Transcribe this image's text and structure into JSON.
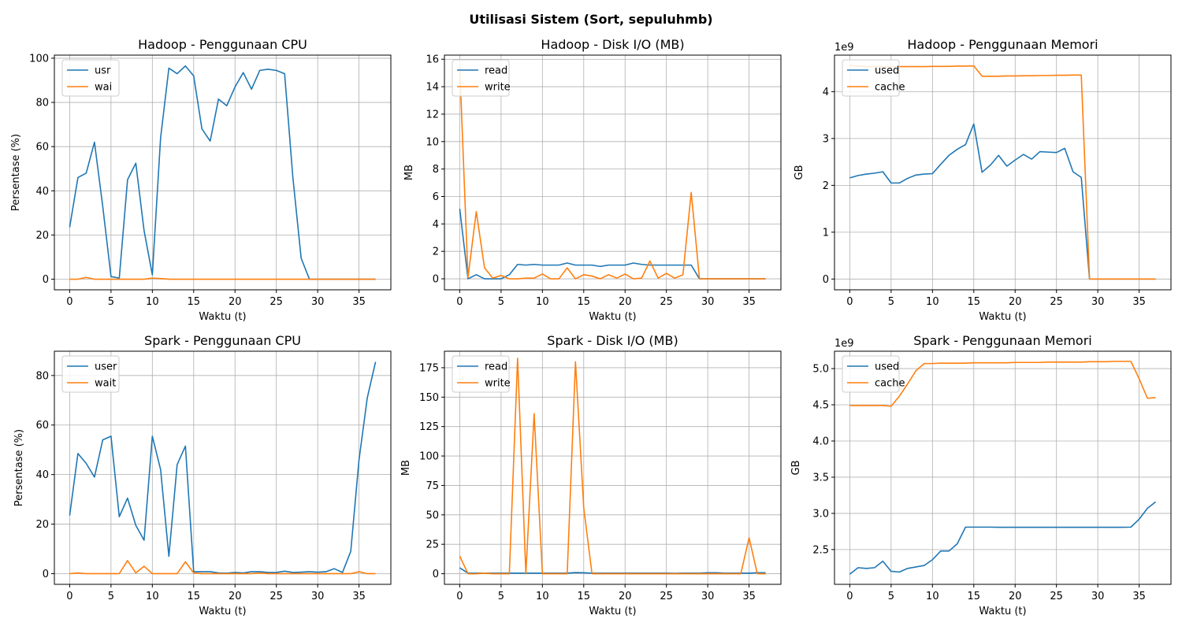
{
  "figure_title": "Utilisasi Sistem (Sort, sepuluhmb)",
  "colors": {
    "series1": "#1f77b4",
    "series2": "#ff7f0e",
    "grid": "#b0b0b0"
  },
  "chart_data": [
    {
      "type": "line",
      "title": "Hadoop - Penggunaan CPU",
      "xlabel": "Waktu (t)",
      "ylabel": "Persentase (%)",
      "xlim": [
        -1.85,
        38.85
      ],
      "ylim": [
        -4.8,
        101.4
      ],
      "xticks": [
        0,
        5,
        10,
        15,
        20,
        25,
        30,
        35
      ],
      "yticks": [
        0,
        20,
        40,
        60,
        80,
        100
      ],
      "yticklabels": [
        "0",
        "20",
        "40",
        "60",
        "80",
        "100"
      ],
      "grid": true,
      "legend_position": "upper-left",
      "x": [
        0,
        1,
        2,
        3,
        4,
        5,
        6,
        7,
        8,
        9,
        10,
        11,
        12,
        13,
        14,
        15,
        16,
        17,
        18,
        19,
        20,
        21,
        22,
        23,
        24,
        25,
        26,
        27,
        28,
        29,
        30,
        31,
        32,
        33,
        34,
        35,
        36,
        37
      ],
      "series": [
        {
          "name": "usr",
          "values": [
            23.5,
            46,
            48,
            62,
            33,
            1.2,
            0.5,
            45,
            52.5,
            22,
            2,
            64,
            95.5,
            93,
            96.5,
            92,
            68,
            62.5,
            81.5,
            78.5,
            87,
            93.5,
            86,
            94.5,
            95,
            94.5,
            93,
            46,
            9.5,
            0,
            0,
            0,
            0,
            0,
            0,
            0,
            0,
            0
          ]
        },
        {
          "name": "wai",
          "values": [
            0,
            0,
            0.8,
            0,
            0,
            0,
            0,
            0,
            0,
            0,
            0.5,
            0.3,
            0,
            0,
            0,
            0,
            0,
            0,
            0,
            0,
            0,
            0,
            0,
            0,
            0,
            0,
            0,
            0,
            0,
            0,
            0,
            0,
            0,
            0,
            0,
            0,
            0,
            0
          ]
        }
      ]
    },
    {
      "type": "line",
      "title": "Hadoop - Disk I/O (MB)",
      "xlabel": "Waktu (t)",
      "ylabel": "MB",
      "xlim": [
        -1.85,
        38.85
      ],
      "ylim": [
        -0.8,
        16.3
      ],
      "xticks": [
        0,
        5,
        10,
        15,
        20,
        25,
        30,
        35
      ],
      "yticks": [
        0,
        2,
        4,
        6,
        8,
        10,
        12,
        14,
        16
      ],
      "yticklabels": [
        "0",
        "2",
        "4",
        "6",
        "8",
        "10",
        "12",
        "14",
        "16"
      ],
      "grid": true,
      "legend_position": "upper-left",
      "x": [
        0,
        1,
        2,
        3,
        4,
        5,
        6,
        7,
        8,
        9,
        10,
        11,
        12,
        13,
        14,
        15,
        16,
        17,
        18,
        19,
        20,
        21,
        22,
        23,
        24,
        25,
        26,
        27,
        28,
        29,
        30,
        31,
        32,
        33,
        34,
        35,
        36,
        37
      ],
      "series": [
        {
          "name": "read",
          "values": [
            5.1,
            0,
            0.3,
            0,
            0,
            0,
            0.3,
            1.05,
            1.0,
            1.05,
            1.0,
            1.0,
            1.0,
            1.15,
            1.0,
            1.0,
            1.0,
            0.9,
            1.0,
            1.0,
            1.0,
            1.15,
            1.05,
            1.0,
            1.0,
            1.0,
            1.0,
            1.0,
            1.0,
            0,
            0,
            0,
            0,
            0,
            0,
            0,
            0,
            0
          ]
        },
        {
          "name": "write",
          "values": [
            15.5,
            0.1,
            4.9,
            0.8,
            0.05,
            0.25,
            0,
            0,
            0.05,
            0.05,
            0.35,
            0,
            0,
            0.8,
            0,
            0.3,
            0.2,
            0,
            0.3,
            0.05,
            0.35,
            0,
            0.05,
            1.3,
            0.05,
            0.4,
            0.05,
            0.3,
            6.3,
            0,
            0,
            0,
            0,
            0,
            0,
            0,
            0,
            0
          ]
        }
      ]
    },
    {
      "type": "line",
      "title": "Hadoop - Penggunaan Memori",
      "xlabel": "Waktu (t)",
      "ylabel": "GB",
      "yscale_label": "1e9",
      "xlim": [
        -1.85,
        38.85
      ],
      "ylim": [
        -230000000.0,
        4780000000.0
      ],
      "xticks": [
        0,
        5,
        10,
        15,
        20,
        25,
        30,
        35
      ],
      "yticks": [
        0,
        1000000000.0,
        2000000000.0,
        3000000000.0,
        4000000000.0
      ],
      "yticklabels": [
        "0",
        "1",
        "2",
        "3",
        "4"
      ],
      "grid": true,
      "legend_position": "upper-left",
      "x": [
        0,
        1,
        2,
        3,
        4,
        5,
        6,
        7,
        8,
        9,
        10,
        11,
        12,
        13,
        14,
        15,
        16,
        17,
        18,
        19,
        20,
        21,
        22,
        23,
        24,
        25,
        26,
        27,
        28,
        29,
        30,
        31,
        32,
        33,
        34,
        35,
        36,
        37
      ],
      "series": [
        {
          "name": "used",
          "values": [
            2160000000.0,
            2210000000.0,
            2240000000.0,
            2260000000.0,
            2290000000.0,
            2050000000.0,
            2050000000.0,
            2150000000.0,
            2220000000.0,
            2240000000.0,
            2250000000.0,
            2450000000.0,
            2640000000.0,
            2770000000.0,
            2870000000.0,
            3310000000.0,
            2280000000.0,
            2430000000.0,
            2640000000.0,
            2410000000.0,
            2540000000.0,
            2660000000.0,
            2560000000.0,
            2720000000.0,
            2710000000.0,
            2700000000.0,
            2790000000.0,
            2290000000.0,
            2170000000.0,
            0,
            0,
            0,
            0,
            0,
            0,
            0,
            0,
            0
          ]
        },
        {
          "name": "cache",
          "values": [
            4560000000.0,
            4545000000.0,
            4535000000.0,
            4535000000.0,
            4535000000.0,
            4535000000.0,
            4535000000.0,
            4535000000.0,
            4535000000.0,
            4535000000.0,
            4540000000.0,
            4540000000.0,
            4540000000.0,
            4545000000.0,
            4545000000.0,
            4550000000.0,
            4330000000.0,
            4330000000.0,
            4330000000.0,
            4335000000.0,
            4335000000.0,
            4340000000.0,
            4340000000.0,
            4345000000.0,
            4345000000.0,
            4350000000.0,
            4350000000.0,
            4355000000.0,
            4355000000.0,
            0,
            0,
            0,
            0,
            0,
            0,
            0,
            0,
            0
          ]
        }
      ]
    },
    {
      "type": "line",
      "title": "Spark - Penggunaan CPU",
      "xlabel": "Waktu (t)",
      "ylabel": "Persentase (%)",
      "xlim": [
        -1.85,
        38.85
      ],
      "ylim": [
        -4.3,
        89.8
      ],
      "xticks": [
        0,
        5,
        10,
        15,
        20,
        25,
        30,
        35
      ],
      "yticks": [
        0,
        20,
        40,
        60,
        80
      ],
      "yticklabels": [
        "0",
        "20",
        "40",
        "60",
        "80"
      ],
      "grid": true,
      "legend_position": "upper-left",
      "x": [
        0,
        1,
        2,
        3,
        4,
        5,
        6,
        7,
        8,
        9,
        10,
        11,
        12,
        13,
        14,
        15,
        16,
        17,
        18,
        19,
        20,
        21,
        22,
        23,
        24,
        25,
        26,
        27,
        28,
        29,
        30,
        31,
        32,
        33,
        34,
        35,
        36,
        37
      ],
      "series": [
        {
          "name": "user",
          "values": [
            23.5,
            48.5,
            44.5,
            39,
            54,
            55.5,
            23,
            30.5,
            19.5,
            13.5,
            55.5,
            42,
            7,
            44,
            51.5,
            0.8,
            0.8,
            0.8,
            0.3,
            0.2,
            0.5,
            0.3,
            0.8,
            0.8,
            0.5,
            0.5,
            1,
            0.5,
            0.6,
            0.8,
            0.6,
            0.8,
            2,
            0.5,
            9,
            46,
            71,
            85.5
          ]
        },
        {
          "name": "wait",
          "values": [
            0,
            0.3,
            0,
            0,
            0,
            0,
            0,
            5.3,
            0.3,
            3,
            0,
            0,
            0,
            0,
            4.8,
            0.3,
            0,
            0,
            0,
            0,
            0,
            0,
            0,
            0.3,
            0,
            0,
            0,
            0,
            0,
            0,
            0,
            0,
            0,
            0,
            0,
            0.8,
            0,
            0
          ]
        }
      ]
    },
    {
      "type": "line",
      "title": "Spark - Disk I/O (MB)",
      "xlabel": "Waktu (t)",
      "ylabel": "MB",
      "xlim": [
        -1.85,
        38.85
      ],
      "ylim": [
        -9,
        189
      ],
      "xticks": [
        0,
        5,
        10,
        15,
        20,
        25,
        30,
        35
      ],
      "yticks": [
        0,
        25,
        50,
        75,
        100,
        125,
        150,
        175
      ],
      "yticklabels": [
        "0",
        "25",
        "50",
        "75",
        "100",
        "125",
        "150",
        "175"
      ],
      "grid": true,
      "legend_position": "upper-left",
      "x": [
        0,
        1,
        2,
        3,
        4,
        5,
        6,
        7,
        8,
        9,
        10,
        11,
        12,
        13,
        14,
        15,
        16,
        17,
        18,
        19,
        20,
        21,
        22,
        23,
        24,
        25,
        26,
        27,
        28,
        29,
        30,
        31,
        32,
        33,
        34,
        35,
        36,
        37
      ],
      "series": [
        {
          "name": "read",
          "values": [
            5,
            0.5,
            0.5,
            0.5,
            0.5,
            0.5,
            0.5,
            0.5,
            0.5,
            0.5,
            0.5,
            0.5,
            0.5,
            0.5,
            1,
            0.8,
            0.5,
            0.5,
            0.5,
            0.5,
            0.5,
            0.5,
            0.5,
            0.5,
            0.5,
            0.5,
            0.3,
            0.5,
            0.5,
            0.5,
            0.8,
            0.8,
            0.5,
            0.5,
            0.5,
            0.5,
            0.8,
            0.8
          ]
        },
        {
          "name": "write",
          "values": [
            15,
            0,
            0,
            0.5,
            0,
            0,
            0,
            183,
            0,
            136,
            0,
            0,
            0,
            0,
            180,
            56,
            0,
            0,
            0,
            0,
            0,
            0,
            0,
            0,
            0,
            0,
            0,
            0,
            0,
            0,
            0,
            0,
            0,
            0,
            0,
            30.5,
            0,
            0
          ]
        }
      ]
    },
    {
      "type": "line",
      "title": "Spark - Penggunaan Memori",
      "xlabel": "Waktu (t)",
      "ylabel": "GB",
      "yscale_label": "1e9",
      "xlim": [
        -1.85,
        38.85
      ],
      "ylim": [
        2020000000.0,
        5240000000.0
      ],
      "xticks": [
        0,
        5,
        10,
        15,
        20,
        25,
        30,
        35
      ],
      "yticks": [
        2500000000.0,
        3000000000.0,
        3500000000.0,
        4000000000.0,
        4500000000.0,
        5000000000.0
      ],
      "yticklabels": [
        "2.5",
        "3.0",
        "3.5",
        "4.0",
        "4.5",
        "5.0"
      ],
      "grid": true,
      "legend_position": "upper-left",
      "x": [
        0,
        1,
        2,
        3,
        4,
        5,
        6,
        7,
        8,
        9,
        10,
        11,
        12,
        13,
        14,
        15,
        16,
        17,
        18,
        19,
        20,
        21,
        22,
        23,
        24,
        25,
        26,
        27,
        28,
        29,
        30,
        31,
        32,
        33,
        34,
        35,
        36,
        37
      ],
      "series": [
        {
          "name": "used",
          "values": [
            2160000000.0,
            2250000000.0,
            2240000000.0,
            2250000000.0,
            2340000000.0,
            2200000000.0,
            2190000000.0,
            2240000000.0,
            2260000000.0,
            2280000000.0,
            2360000000.0,
            2480000000.0,
            2480000000.0,
            2580000000.0,
            2810000000.0,
            2810000000.0,
            2810000000.0,
            2810000000.0,
            2808000000.0,
            2808000000.0,
            2808000000.0,
            2808000000.0,
            2808000000.0,
            2808000000.0,
            2808000000.0,
            2808000000.0,
            2808000000.0,
            2808000000.0,
            2808000000.0,
            2808000000.0,
            2808000000.0,
            2808000000.0,
            2808000000.0,
            2808000000.0,
            2810000000.0,
            2920000000.0,
            3070000000.0,
            3160000000.0
          ]
        },
        {
          "name": "cache",
          "values": [
            4490000000.0,
            4490000000.0,
            4490000000.0,
            4490000000.0,
            4490000000.0,
            4480000000.0,
            4620000000.0,
            4790000000.0,
            4970000000.0,
            5070000000.0,
            5070000000.0,
            5075000000.0,
            5075000000.0,
            5075000000.0,
            5075000000.0,
            5080000000.0,
            5080000000.0,
            5080000000.0,
            5080000000.0,
            5080000000.0,
            5085000000.0,
            5085000000.0,
            5085000000.0,
            5085000000.0,
            5090000000.0,
            5090000000.0,
            5090000000.0,
            5090000000.0,
            5090000000.0,
            5095000000.0,
            5095000000.0,
            5095000000.0,
            5100000000.0,
            5100000000.0,
            5100000000.0,
            4860000000.0,
            4590000000.0,
            4600000000.0
          ]
        }
      ]
    }
  ]
}
